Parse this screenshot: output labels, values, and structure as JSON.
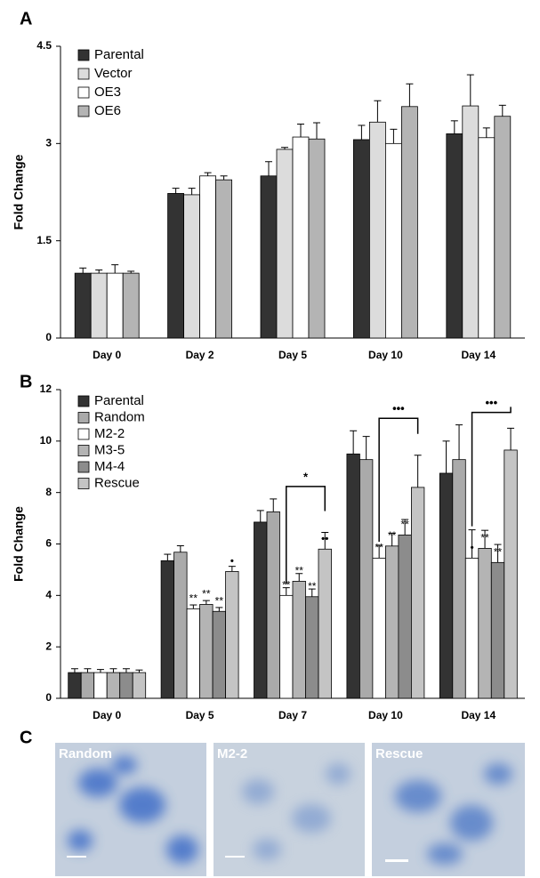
{
  "chart_data": [
    {
      "type": "bar",
      "panel_label": "A",
      "y_label": "Fold Change",
      "legend": "upper left",
      "categories": [
        "Day 0",
        "Day 2",
        "Day 5",
        "Day 10",
        "Day 14"
      ],
      "ylim": [
        0,
        4.5
      ],
      "yticks": [
        0,
        1.5,
        3,
        4.5
      ],
      "series": [
        {
          "name": "Parental",
          "color": "#333333",
          "values": [
            1.0,
            2.23,
            2.5,
            3.06,
            3.15
          ],
          "errors": [
            0.08,
            0.08,
            0.22,
            0.22,
            0.2
          ]
        },
        {
          "name": "Vector",
          "color": "#dcdcdc",
          "values": [
            1.0,
            2.21,
            2.91,
            3.33,
            3.58
          ],
          "errors": [
            0.05,
            0.1,
            0.03,
            0.33,
            0.48
          ]
        },
        {
          "name": "OE3",
          "color": "#ffffff",
          "values": [
            1.0,
            2.5,
            3.1,
            3.0,
            3.09
          ],
          "errors": [
            0.13,
            0.05,
            0.2,
            0.22,
            0.15
          ]
        },
        {
          "name": "OE6",
          "color": "#b4b4b4",
          "values": [
            1.0,
            2.44,
            3.07,
            3.57,
            3.42
          ],
          "errors": [
            0.03,
            0.06,
            0.25,
            0.35,
            0.17
          ]
        }
      ]
    },
    {
      "type": "bar",
      "panel_label": "B",
      "y_label": "Fold Change",
      "legend": "upper left",
      "categories": [
        "Day 0",
        "Day 5",
        "Day 7",
        "Day 10",
        "Day 14"
      ],
      "ylim": [
        0,
        12
      ],
      "yticks": [
        0,
        2,
        4,
        6,
        8,
        10,
        12
      ],
      "series": [
        {
          "name": "Parental",
          "color": "#333333",
          "values": [
            1.0,
            5.35,
            6.85,
            9.5,
            8.75
          ],
          "errors": [
            0.15,
            0.25,
            0.45,
            0.9,
            1.25
          ]
        },
        {
          "name": "Random",
          "color": "#aaaaaa",
          "values": [
            1.0,
            5.68,
            7.25,
            9.28,
            9.28
          ],
          "errors": [
            0.15,
            0.25,
            0.5,
            0.9,
            1.35
          ]
        },
        {
          "name": "M2-2",
          "color": "#ffffff",
          "values": [
            1.0,
            3.48,
            4.0,
            5.45,
            5.45
          ],
          "errors": [
            0.12,
            0.15,
            0.3,
            0.5,
            1.1
          ],
          "annotations": [
            null,
            "**",
            "**",
            "**",
            "•"
          ]
        },
        {
          "name": "M3-5",
          "color": "#b4b4b4",
          "values": [
            1.0,
            3.65,
            4.55,
            5.92,
            5.83
          ],
          "errors": [
            0.15,
            0.15,
            0.3,
            0.5,
            0.7
          ],
          "annotations": [
            null,
            "**",
            "**",
            "**",
            "**"
          ]
        },
        {
          "name": "M4-4",
          "color": "#8c8c8c",
          "values": [
            1.0,
            3.38,
            3.95,
            6.35,
            5.28
          ],
          "errors": [
            0.15,
            0.15,
            0.3,
            0.6,
            0.7
          ],
          "annotations": [
            null,
            "**",
            "**",
            "**",
            "**"
          ]
        },
        {
          "name": "Rescue",
          "color": "#c4c4c4",
          "values": [
            1.0,
            4.93,
            5.8,
            8.2,
            9.65
          ],
          "errors": [
            0.1,
            0.2,
            0.65,
            1.25,
            0.85
          ],
          "annotations": [
            null,
            "•",
            "••",
            null,
            null
          ]
        }
      ],
      "brackets": [
        {
          "text": "*",
          "category": 2,
          "from_series": 2,
          "to_series": 5
        },
        {
          "text": "•••",
          "category": 3,
          "from_series": 2,
          "to_series": 5
        },
        {
          "text": "•••",
          "category": 4,
          "from_series": 2,
          "to_series": 5
        }
      ]
    }
  ],
  "panel_c": {
    "label": "C",
    "images": [
      "Random",
      "M2-2",
      "Rescue"
    ]
  }
}
